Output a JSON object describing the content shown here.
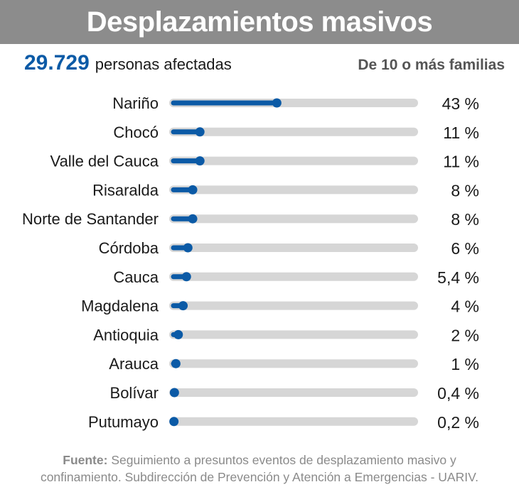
{
  "header": {
    "title": "Desplazamientos masivos",
    "total_value": "29.729",
    "total_label": "personas afectadas",
    "note": "De 10 o más familias"
  },
  "colors": {
    "title_bar": "#8c8c8c",
    "accent_blue": "#0b5aa6",
    "track_gray": "#d6d6d6",
    "footer_gray": "#8a8a8a"
  },
  "chart_data": {
    "type": "bar",
    "orientation": "horizontal",
    "unit": "%",
    "xlim": [
      0,
      100
    ],
    "categories": [
      "Nariño",
      "Chocó",
      "Valle del Cauca",
      "Risaralda",
      "Norte de Santander",
      "Córdoba",
      "Cauca",
      "Magdalena",
      "Antioquia",
      "Arauca",
      "Bolívar",
      "Putumayo"
    ],
    "values": [
      43,
      11,
      11,
      8,
      8,
      6,
      5.4,
      4,
      2,
      1,
      0.4,
      0.2
    ],
    "value_labels": [
      "43 %",
      "11 %",
      "11 %",
      "8 %",
      "8 %",
      "6 %",
      "5,4 %",
      "4 %",
      "2 %",
      "1 %",
      "0,4 %",
      "0,2 %"
    ]
  },
  "footer": {
    "source_label": "Fuente:",
    "source_text": "Seguimiento a presuntos eventos de desplazamiento masivo y",
    "source_text_2": "confinamiento. Subdirección de Prevención y Atención a Emergencias - UARIV."
  }
}
